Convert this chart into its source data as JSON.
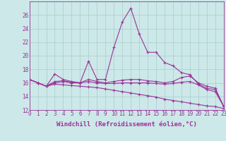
{
  "xlabel": "Windchill (Refroidissement éolien,°C)",
  "background_color": "#cce8e8",
  "grid_color": "#aacccc",
  "line_color": "#993399",
  "x_values": [
    0,
    1,
    2,
    3,
    4,
    5,
    6,
    7,
    8,
    9,
    10,
    11,
    12,
    13,
    14,
    15,
    16,
    17,
    18,
    19,
    20,
    21,
    22,
    23
  ],
  "series": [
    [
      16.5,
      16.0,
      15.5,
      17.3,
      16.5,
      16.2,
      16.0,
      19.2,
      16.5,
      16.5,
      21.2,
      25.0,
      27.0,
      23.2,
      20.5,
      20.5,
      19.0,
      18.5,
      17.5,
      17.2,
      15.8,
      15.2,
      15.0,
      12.5
    ],
    [
      16.5,
      16.0,
      15.5,
      16.2,
      16.3,
      16.1,
      16.0,
      16.5,
      16.2,
      16.0,
      16.2,
      16.4,
      16.5,
      16.5,
      16.3,
      16.2,
      16.0,
      16.2,
      16.8,
      17.0,
      16.0,
      15.5,
      15.2,
      12.5
    ],
    [
      16.5,
      16.0,
      15.5,
      16.0,
      16.2,
      16.0,
      16.0,
      16.2,
      16.0,
      15.9,
      15.9,
      16.0,
      16.0,
      16.0,
      16.0,
      15.9,
      15.8,
      15.9,
      16.1,
      16.2,
      15.7,
      15.0,
      14.7,
      12.5
    ],
    [
      16.5,
      16.0,
      15.5,
      15.8,
      15.7,
      15.6,
      15.5,
      15.4,
      15.3,
      15.1,
      14.9,
      14.7,
      14.5,
      14.3,
      14.1,
      13.9,
      13.6,
      13.4,
      13.2,
      13.0,
      12.8,
      12.6,
      12.5,
      12.2
    ]
  ],
  "ylim": [
    12,
    28
  ],
  "yticks": [
    12,
    14,
    16,
    18,
    20,
    22,
    24,
    26
  ],
  "xlim": [
    0,
    23
  ],
  "xticks": [
    0,
    1,
    2,
    3,
    4,
    5,
    6,
    7,
    8,
    9,
    10,
    11,
    12,
    13,
    14,
    15,
    16,
    17,
    18,
    19,
    20,
    21,
    22,
    23
  ],
  "font_color": "#993399",
  "tick_fontsize": 5.5,
  "xlabel_fontsize": 6.5
}
